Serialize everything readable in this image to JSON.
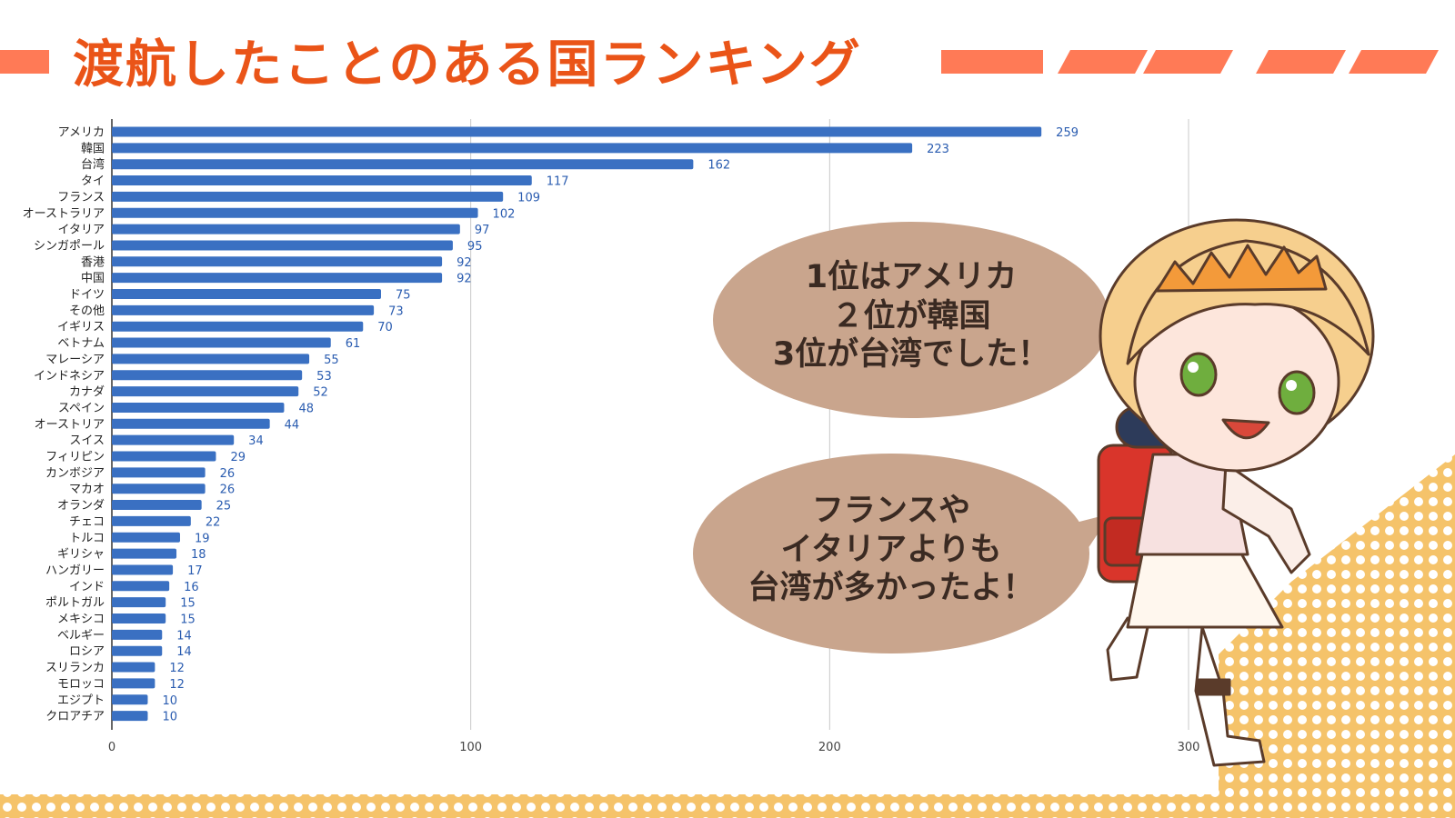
{
  "page": {
    "title": "渡航したことのある国ランキング",
    "colors": {
      "title": "#ea5418",
      "accent_bar": "#ff7a56",
      "dots": "#f5c36a",
      "bubble": "#c9a58d",
      "bar": "#3a70c2",
      "bubble_text": "#3a2a22"
    }
  },
  "bubbles": [
    {
      "lines": [
        "1位はアメリカ",
        "２位が韓国",
        "3位が台湾でした！"
      ]
    },
    {
      "lines": [
        "フランスや",
        "イタリアよりも",
        "台湾が多かったよ！"
      ]
    }
  ],
  "character": {
    "icon": "traveler-girl-illustration"
  },
  "chart_data": {
    "type": "bar",
    "orientation": "horizontal",
    "categories": [
      "アメリカ",
      "韓国",
      "台湾",
      "タイ",
      "フランス",
      "オーストラリア",
      "イタリア",
      "シンガポール",
      "香港",
      "中国",
      "ドイツ",
      "その他",
      "イギリス",
      "ベトナム",
      "マレーシア",
      "インドネシア",
      "カナダ",
      "スペイン",
      "オーストリア",
      "スイス",
      "フィリピン",
      "カンボジア",
      "マカオ",
      "オランダ",
      "チェコ",
      "トルコ",
      "ギリシャ",
      "ハンガリー",
      "インド",
      "ポルトガル",
      "メキシコ",
      "ベルギー",
      "ロシア",
      "スリランカ",
      "モロッコ",
      "エジプト",
      "クロアチア"
    ],
    "values": [
      259,
      223,
      162,
      117,
      109,
      102,
      97,
      95,
      92,
      92,
      75,
      73,
      70,
      61,
      55,
      53,
      52,
      48,
      44,
      34,
      29,
      26,
      26,
      25,
      22,
      19,
      18,
      17,
      16,
      15,
      15,
      14,
      14,
      12,
      12,
      10,
      10
    ],
    "xlim": [
      0,
      300
    ],
    "xticks": [
      0,
      100,
      200,
      300
    ],
    "grid": true,
    "data_labels": true,
    "bar_color": "#3a70c2",
    "label_color": "#2a5cb0"
  }
}
